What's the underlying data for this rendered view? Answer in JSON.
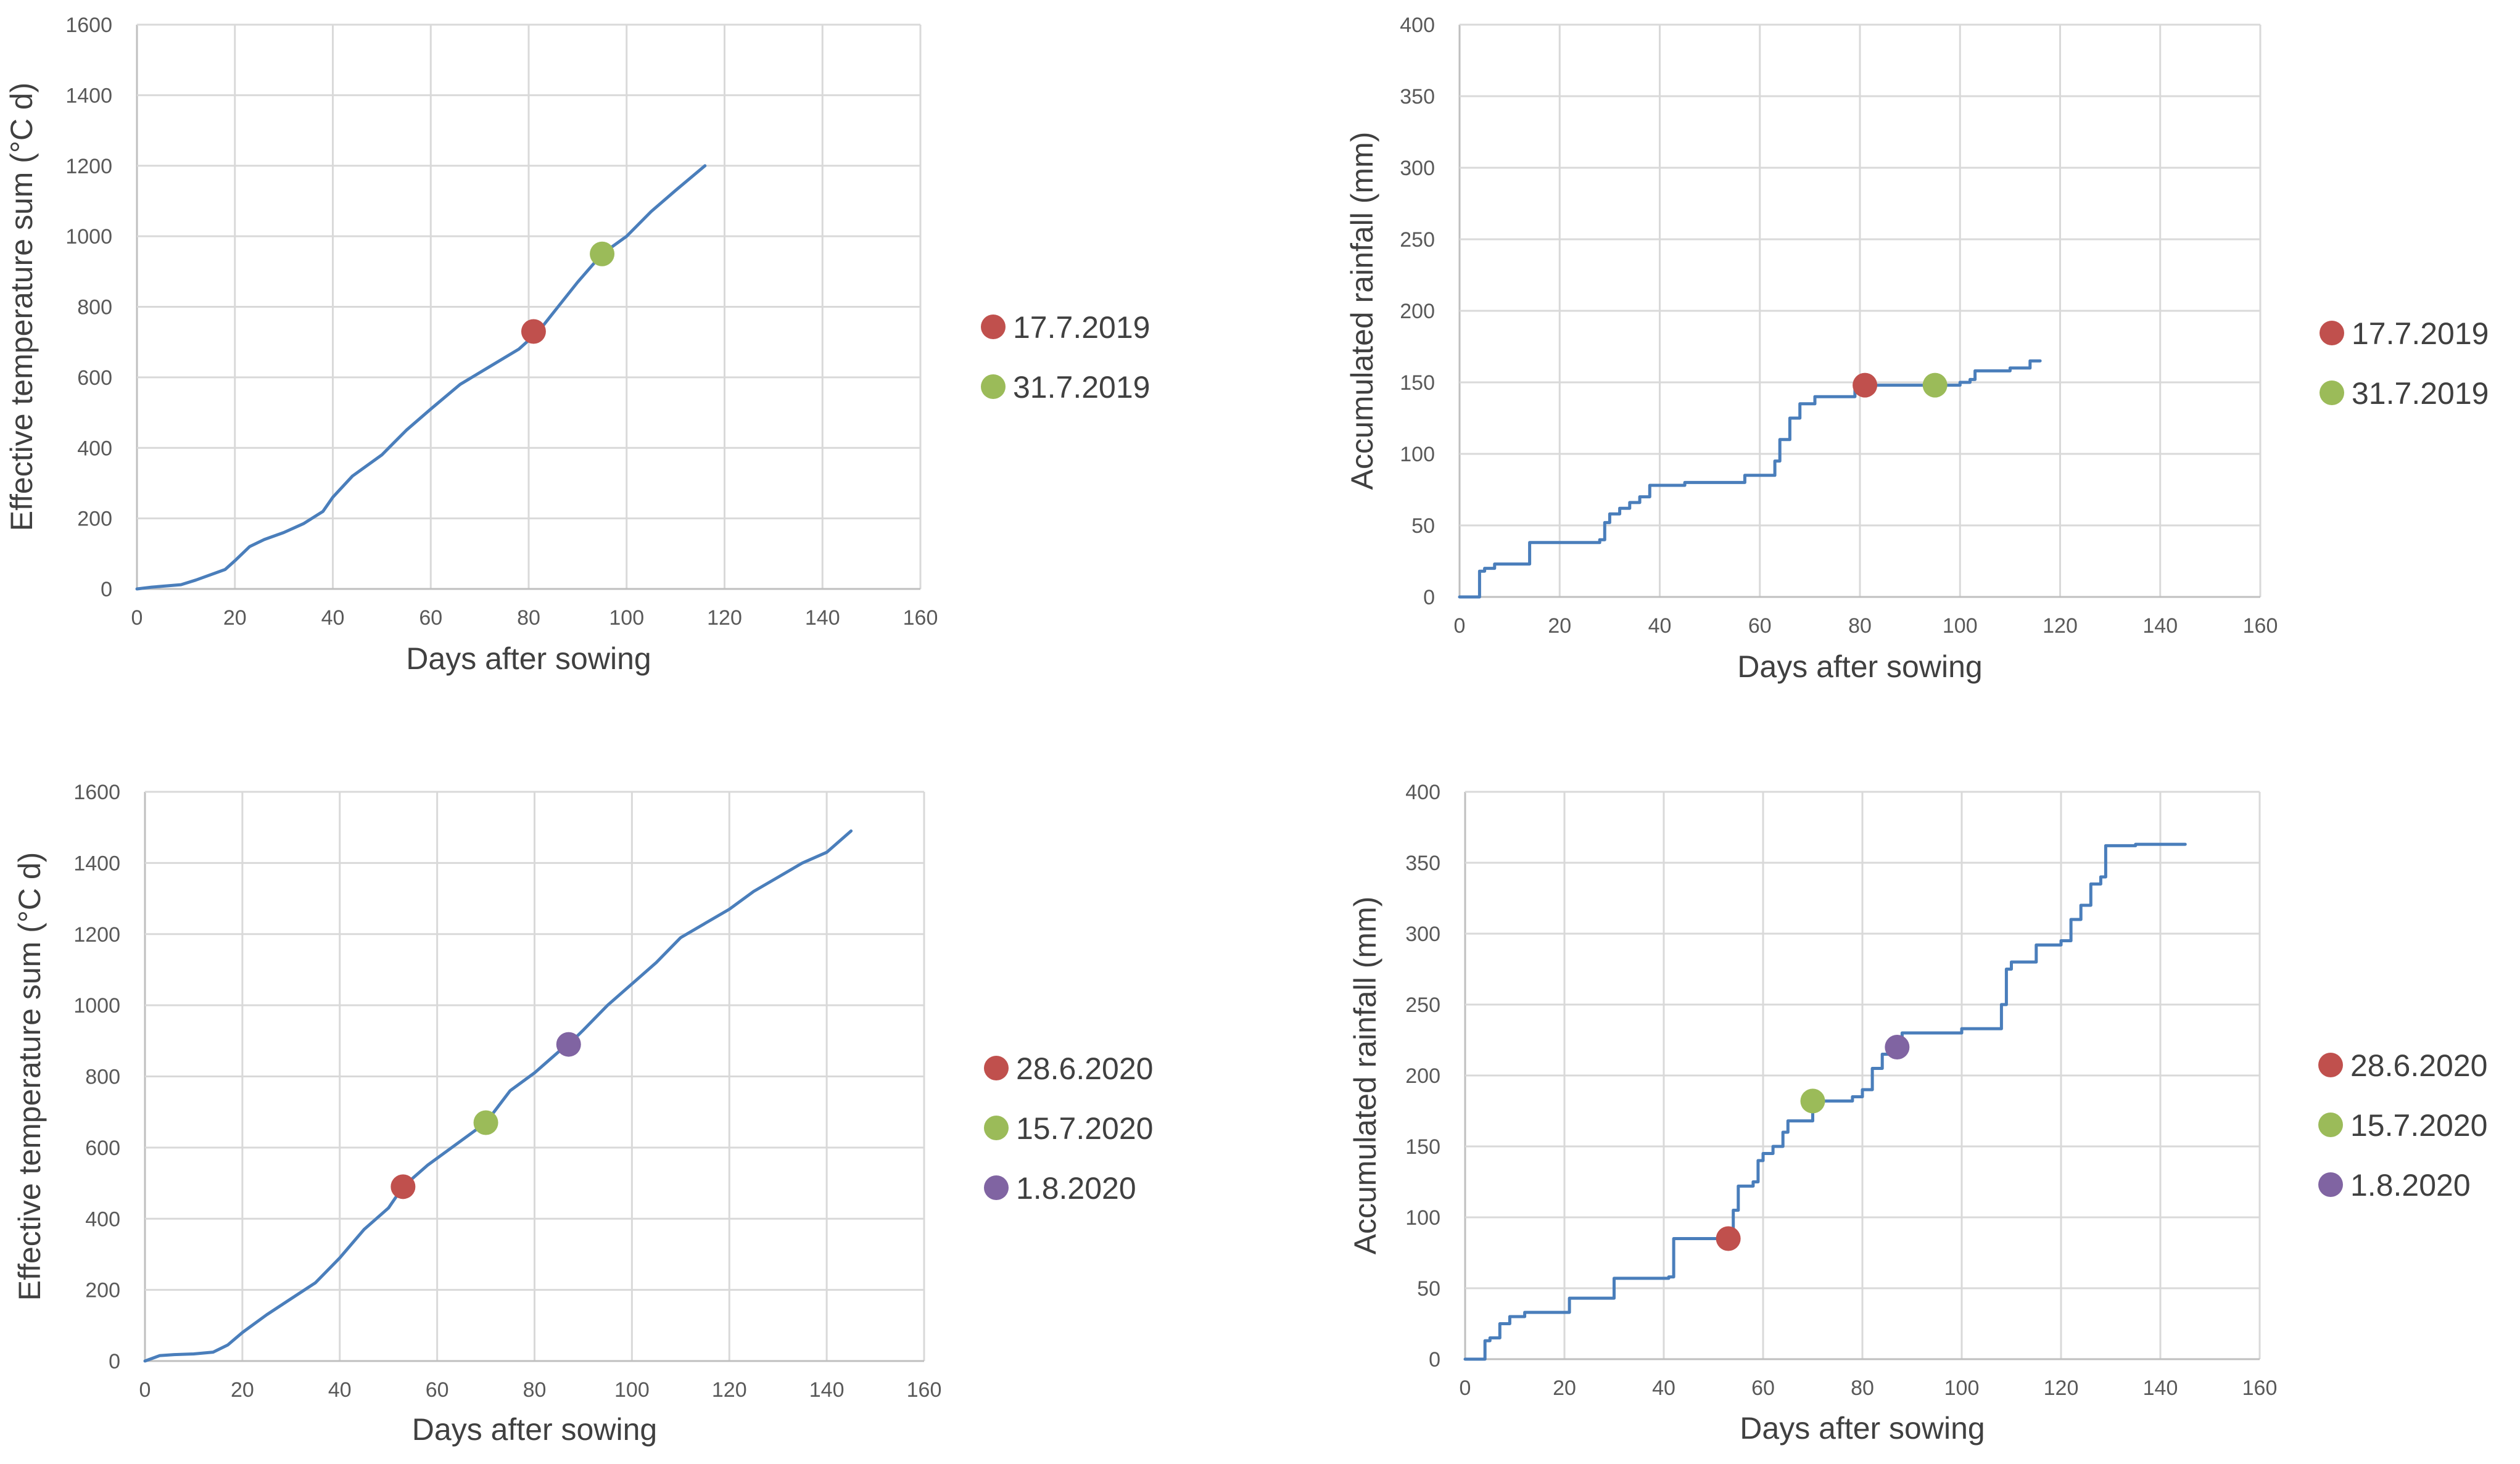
{
  "chart_data": [
    {
      "type": "line",
      "panel": "top-left",
      "title": "",
      "xlabel": "Days after sowing",
      "ylabel": "Effective temperature sum (°C d)",
      "xlim": [
        0,
        160
      ],
      "ylim": [
        0,
        1600
      ],
      "xticks": [
        0,
        20,
        40,
        60,
        80,
        100,
        120,
        140,
        160
      ],
      "yticks": [
        0,
        200,
        400,
        600,
        800,
        1000,
        1200,
        1400,
        1600
      ],
      "grid": true,
      "series": [
        {
          "name": "Effective temperature sum",
          "color": "#4a7ebb",
          "step": false,
          "x": [
            0,
            3,
            9,
            12,
            18,
            20,
            23,
            26,
            30,
            34,
            38,
            40,
            44,
            50,
            55,
            60,
            66,
            72,
            78,
            82,
            86,
            90,
            95,
            100,
            105,
            110,
            116
          ],
          "y": [
            0,
            5,
            12,
            25,
            55,
            80,
            120,
            140,
            160,
            185,
            220,
            260,
            320,
            380,
            450,
            510,
            580,
            630,
            680,
            730,
            800,
            870,
            950,
            1000,
            1070,
            1130,
            1200
          ]
        }
      ],
      "markers": [
        {
          "label": "17.7.2019",
          "x": 81,
          "y": 730,
          "color": "#c0504d"
        },
        {
          "label": "31.7.2019",
          "x": 95,
          "y": 950,
          "color": "#9bbb59"
        }
      ],
      "legend_position": "right"
    },
    {
      "type": "line",
      "panel": "top-right",
      "title": "",
      "xlabel": "Days after sowing",
      "ylabel": "Accumulated rainfall (mm)",
      "xlim": [
        0,
        160
      ],
      "ylim": [
        0,
        400
      ],
      "xticks": [
        0,
        20,
        40,
        60,
        80,
        100,
        120,
        140,
        160
      ],
      "yticks": [
        0,
        50,
        100,
        150,
        200,
        250,
        300,
        350,
        400
      ],
      "grid": true,
      "series": [
        {
          "name": "Accumulated rainfall",
          "color": "#4a7ebb",
          "step": true,
          "x": [
            0,
            4,
            5,
            7,
            13,
            14,
            28,
            29,
            30,
            32,
            34,
            36,
            38,
            45,
            55,
            57,
            62,
            63,
            64,
            66,
            68,
            71,
            77,
            79,
            81,
            96,
            100,
            102,
            103,
            110,
            112,
            114,
            116
          ],
          "y": [
            0,
            18,
            20,
            23,
            23,
            38,
            40,
            52,
            58,
            62,
            66,
            70,
            78,
            80,
            80,
            85,
            85,
            95,
            110,
            125,
            135,
            140,
            140,
            145,
            148,
            148,
            150,
            152,
            158,
            160,
            160,
            165,
            165
          ]
        }
      ],
      "markers": [
        {
          "label": "17.7.2019",
          "x": 81,
          "y": 148,
          "color": "#c0504d"
        },
        {
          "label": "31.7.2019",
          "x": 95,
          "y": 148,
          "color": "#9bbb59"
        }
      ],
      "legend_position": "right"
    },
    {
      "type": "line",
      "panel": "bottom-left",
      "title": "",
      "xlabel": "Days after sowing",
      "ylabel": "Effective temperature sum (°C d)",
      "xlim": [
        0,
        160
      ],
      "ylim": [
        0,
        1600
      ],
      "xticks": [
        0,
        20,
        40,
        60,
        80,
        100,
        120,
        140,
        160
      ],
      "yticks": [
        0,
        200,
        400,
        600,
        800,
        1000,
        1200,
        1400,
        1600
      ],
      "grid": true,
      "series": [
        {
          "name": "Effective temperature sum",
          "color": "#4a7ebb",
          "step": false,
          "x": [
            0,
            3,
            6,
            10,
            14,
            17,
            20,
            25,
            30,
            35,
            40,
            45,
            50,
            53,
            58,
            63,
            68,
            70,
            75,
            80,
            85,
            87,
            90,
            95,
            100,
            105,
            110,
            115,
            120,
            125,
            130,
            135,
            140,
            145
          ],
          "y": [
            0,
            15,
            18,
            20,
            25,
            45,
            80,
            130,
            175,
            220,
            290,
            370,
            430,
            490,
            550,
            600,
            650,
            670,
            760,
            810,
            870,
            890,
            930,
            1000,
            1060,
            1120,
            1190,
            1230,
            1270,
            1320,
            1360,
            1400,
            1430,
            1490
          ]
        }
      ],
      "markers": [
        {
          "label": "28.6.2020",
          "x": 53,
          "y": 490,
          "color": "#c0504d"
        },
        {
          "label": "15.7.2020",
          "x": 70,
          "y": 670,
          "color": "#9bbb59"
        },
        {
          "label": "1.8.2020",
          "x": 87,
          "y": 890,
          "color": "#8064a2"
        }
      ],
      "legend_position": "right"
    },
    {
      "type": "line",
      "panel": "bottom-right",
      "title": "",
      "xlabel": "Days after sowing",
      "ylabel": "Accumulated rainfall (mm)",
      "xlim": [
        0,
        160
      ],
      "ylim": [
        0,
        400
      ],
      "xticks": [
        0,
        20,
        40,
        60,
        80,
        100,
        120,
        140,
        160
      ],
      "yticks": [
        0,
        50,
        100,
        150,
        200,
        250,
        300,
        350,
        400
      ],
      "grid": true,
      "series": [
        {
          "name": "Accumulated rainfall",
          "color": "#4a7ebb",
          "step": true,
          "x": [
            0,
            4,
            5,
            7,
            9,
            12,
            20,
            21,
            28,
            30,
            41,
            42,
            53,
            54,
            55,
            58,
            59,
            60,
            62,
            64,
            65,
            70,
            75,
            78,
            80,
            82,
            84,
            87,
            88,
            100,
            108,
            109,
            110,
            114,
            115,
            120,
            122,
            124,
            126,
            128,
            129,
            135,
            145
          ],
          "y": [
            0,
            13,
            15,
            25,
            30,
            33,
            33,
            43,
            43,
            57,
            58,
            85,
            85,
            105,
            122,
            125,
            140,
            145,
            150,
            160,
            168,
            182,
            182,
            185,
            190,
            205,
            215,
            220,
            230,
            233,
            250,
            275,
            280,
            280,
            292,
            295,
            310,
            320,
            335,
            340,
            362,
            363,
            363
          ]
        }
      ],
      "markers": [
        {
          "label": "28.6.2020",
          "x": 53,
          "y": 85,
          "color": "#c0504d"
        },
        {
          "label": "15.7.2020",
          "x": 70,
          "y": 182,
          "color": "#9bbb59"
        },
        {
          "label": "1.8.2020",
          "x": 87,
          "y": 220,
          "color": "#8064a2"
        }
      ],
      "legend_position": "right"
    }
  ]
}
